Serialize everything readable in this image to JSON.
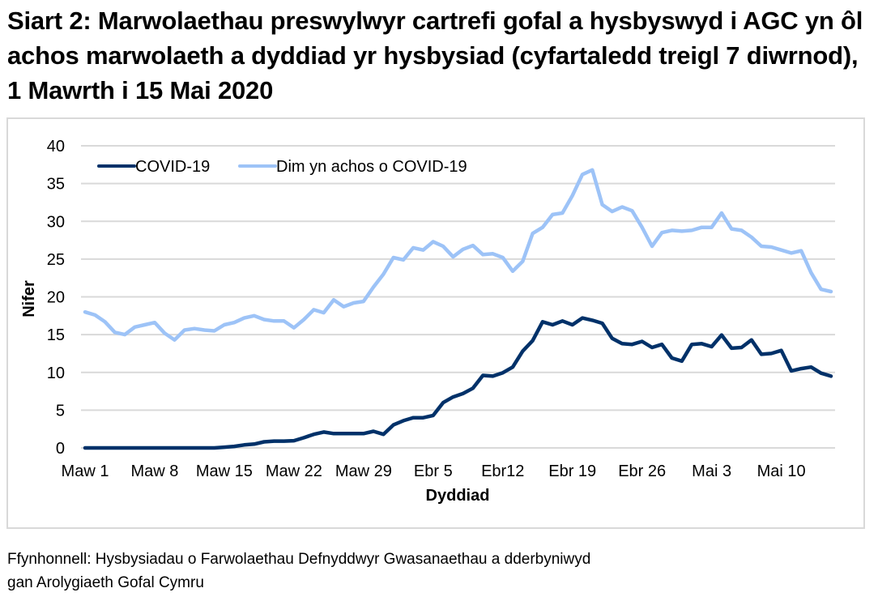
{
  "header": {
    "title": "Siart 2: Marwolaethau preswylwyr cartrefi gofal a hysbyswyd i AGC yn ôl achos marwolaeth a dyddiad yr hysbysiad (cyfartaledd treigl 7 diwrnod), 1 Mawrth i 15 Mai 2020"
  },
  "footer": {
    "source_line1": "Ffynhonnell: Hysbysiadau o Farwolaethau Defnyddwyr Gwasanaethau a dderbyniwyd",
    "source_line2": "gan Arolygiaeth Gofal Cymru"
  },
  "colors": {
    "covid": "#003169",
    "non_covid": "#9dc3f7",
    "grid": "#d9d9d9",
    "border": "#d9d9d9"
  },
  "chart_data": {
    "type": "line",
    "title": "Siart 2: Marwolaethau preswylwyr cartrefi gofal a hysbyswyd i AGC yn ôl achos marwolaeth a dyddiad yr hysbysiad (cyfartaledd treigl 7 diwrnod), 1 Mawrth i 15 Mai 2020",
    "xlabel": "Dyddiad",
    "ylabel": "Nifer",
    "ylim": [
      0,
      40
    ],
    "yticks": [
      0,
      5,
      10,
      15,
      20,
      25,
      30,
      35,
      40
    ],
    "grid": true,
    "legend_position": "top-left",
    "x_start": "2020-03-01",
    "x_end": "2020-05-15",
    "x_tick_labels": [
      {
        "label": "Maw 1",
        "index": 0
      },
      {
        "label": "Maw 8",
        "index": 7
      },
      {
        "label": "Maw 15",
        "index": 14
      },
      {
        "label": "Maw 22",
        "index": 21
      },
      {
        "label": "Maw 29",
        "index": 28
      },
      {
        "label": "Ebr 5",
        "index": 35
      },
      {
        "label": "Ebr12",
        "index": 42
      },
      {
        "label": "Ebr 19",
        "index": 49
      },
      {
        "label": "Ebr 26",
        "index": 56
      },
      {
        "label": "Mai 3",
        "index": 63
      },
      {
        "label": "Mai 10",
        "index": 70
      }
    ],
    "series": [
      {
        "name": "COVID-19",
        "color": "#003169",
        "values": [
          0,
          0,
          0,
          0,
          0,
          0,
          0,
          0,
          0,
          0,
          0,
          0,
          0,
          0,
          0.1,
          0.2,
          0.4,
          0.5,
          0.8,
          0.9,
          0.9,
          0.95,
          1.35,
          1.8,
          2.1,
          1.9,
          1.9,
          1.9,
          1.9,
          2.2,
          1.8,
          3.05,
          3.6,
          4.0,
          4.0,
          4.3,
          6.0,
          6.75,
          7.2,
          7.9,
          9.6,
          9.5,
          9.95,
          10.7,
          12.8,
          14.2,
          16.7,
          16.3,
          16.8,
          16.3,
          17.2,
          16.9,
          16.5,
          14.5,
          13.8,
          13.7,
          14.1,
          13.3,
          13.7,
          11.9,
          11.5,
          13.7,
          13.8,
          13.4,
          14.95,
          13.2,
          13.3,
          14.3,
          12.4,
          12.5,
          12.9,
          10.2,
          10.5,
          10.7,
          9.9,
          9.5
        ]
      },
      {
        "name": "Dim yn achos o COVID-19",
        "color": "#9dc3f7",
        "values": [
          18.0,
          17.6,
          16.7,
          15.3,
          15.0,
          16.0,
          16.3,
          16.6,
          15.2,
          14.3,
          15.6,
          15.8,
          15.6,
          15.5,
          16.3,
          16.6,
          17.2,
          17.5,
          17.0,
          16.8,
          16.8,
          15.9,
          17.0,
          18.3,
          17.9,
          19.6,
          18.7,
          19.2,
          19.4,
          21.3,
          23.0,
          25.2,
          24.9,
          26.5,
          26.2,
          27.3,
          26.7,
          25.3,
          26.3,
          26.8,
          25.6,
          25.7,
          25.2,
          23.4,
          24.7,
          28.4,
          29.2,
          30.9,
          31.1,
          33.4,
          36.2,
          36.8,
          32.2,
          31.3,
          31.9,
          31.4,
          29.2,
          26.7,
          28.5,
          28.8,
          28.7,
          28.8,
          29.2,
          29.2,
          31.1,
          29.0,
          28.8,
          27.9,
          26.7,
          26.6,
          26.2,
          25.8,
          26.1,
          23.2,
          21.0,
          20.7
        ]
      }
    ]
  }
}
